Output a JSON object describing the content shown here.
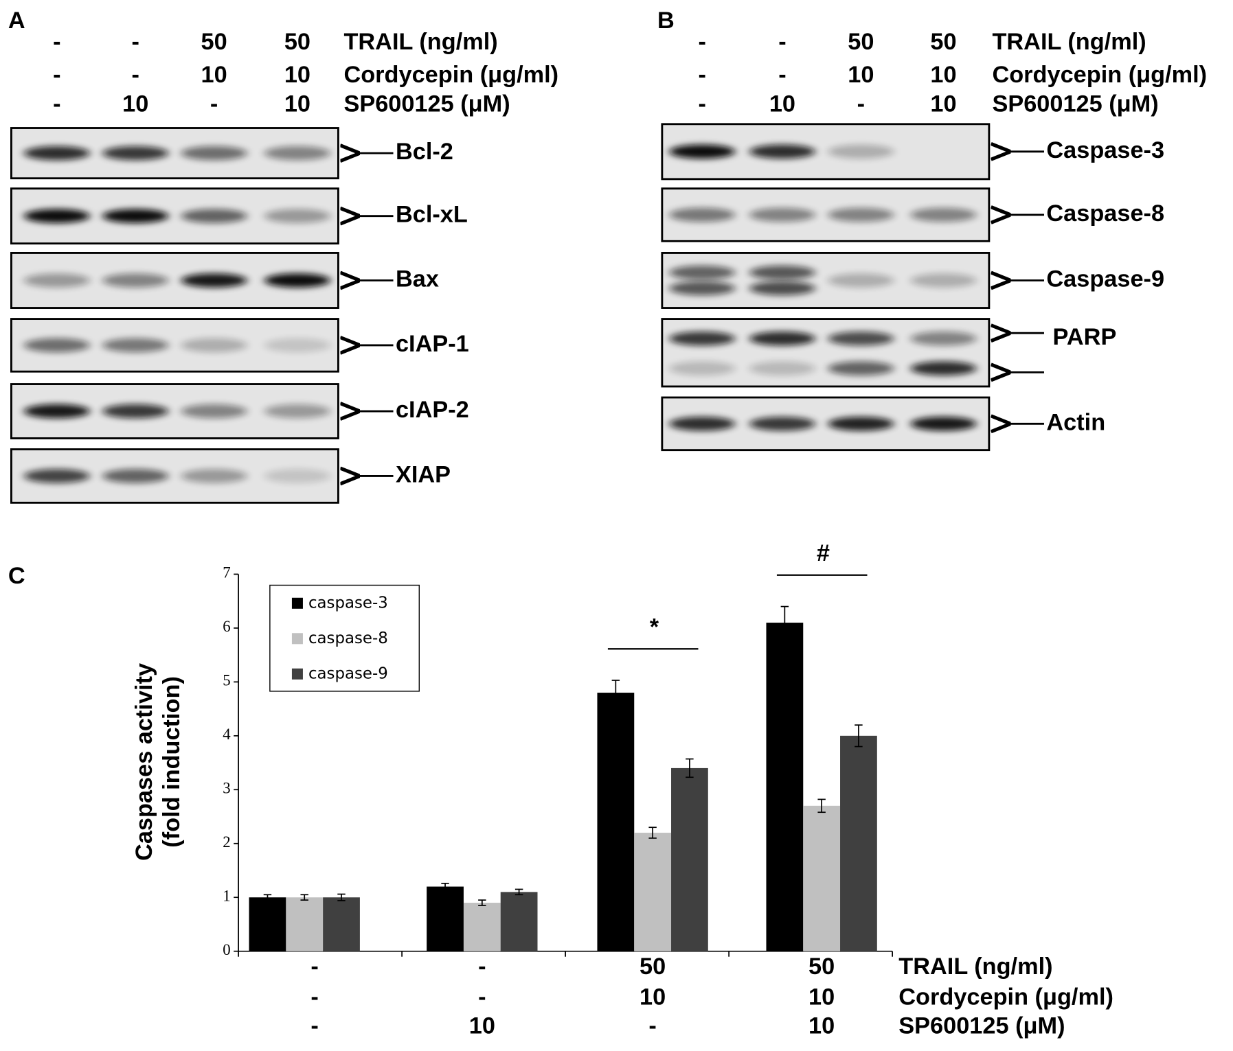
{
  "panel_a": {
    "label": "A",
    "treatments": [
      {
        "name": "TRAIL (ng/ml)",
        "values": [
          "-",
          "-",
          "50",
          "50"
        ]
      },
      {
        "name": "Cordycepin (μg/ml)",
        "values": [
          "-",
          "-",
          "10",
          "10"
        ]
      },
      {
        "name": "SP600125 (μM)",
        "values": [
          "-",
          "10",
          "-",
          "10"
        ]
      }
    ],
    "blots": [
      "Bcl-2",
      "Bcl-xL",
      "Bax",
      "cIAP-1",
      "cIAP-2",
      "XIAP"
    ]
  },
  "panel_b": {
    "label": "B",
    "treatments": [
      {
        "name": "TRAIL (ng/ml)",
        "values": [
          "-",
          "-",
          "50",
          "50"
        ]
      },
      {
        "name": "Cordycepin (μg/ml)",
        "values": [
          "-",
          "-",
          "10",
          "10"
        ]
      },
      {
        "name": "SP600125 (μM)",
        "values": [
          "-",
          "10",
          "-",
          "10"
        ]
      }
    ],
    "blots": [
      "Caspase-3",
      "Caspase-8",
      "Caspase-9",
      "PARP",
      "Actin"
    ]
  },
  "chart_data": {
    "type": "bar",
    "panel_label": "C",
    "ylabel_lines": [
      "Caspases activity",
      "(fold induction)"
    ],
    "categories": [
      null,
      null,
      null,
      null
    ],
    "series": [
      {
        "name": "caspase-3",
        "color": "#000000",
        "values": [
          1.0,
          1.2,
          4.8,
          6.1
        ],
        "errors": [
          0.05,
          0.06,
          0.23,
          0.3
        ]
      },
      {
        "name": "caspase-8",
        "color": "#c0c0c0",
        "values": [
          1.0,
          0.9,
          2.2,
          2.7
        ],
        "errors": [
          0.05,
          0.05,
          0.1,
          0.12
        ]
      },
      {
        "name": "caspase-9",
        "color": "#404040",
        "values": [
          1.0,
          1.1,
          3.4,
          4.0
        ],
        "errors": [
          0.06,
          0.05,
          0.17,
          0.2
        ]
      }
    ],
    "ylim": [
      0,
      7
    ],
    "yticks": [
      0,
      1,
      2,
      3,
      4,
      5,
      6,
      7
    ],
    "treatments": [
      {
        "name": "TRAIL (ng/ml)",
        "values": [
          "-",
          "-",
          "50",
          "50"
        ]
      },
      {
        "name": "Cordycepin (μg/ml)",
        "values": [
          "-",
          "-",
          "10",
          "10"
        ]
      },
      {
        "name": "SP600125 (μM)",
        "values": [
          "-",
          "10",
          "-",
          "10"
        ]
      }
    ],
    "annotations": [
      {
        "text": "*",
        "group": 2
      },
      {
        "text": "#",
        "group": 3
      }
    ]
  }
}
